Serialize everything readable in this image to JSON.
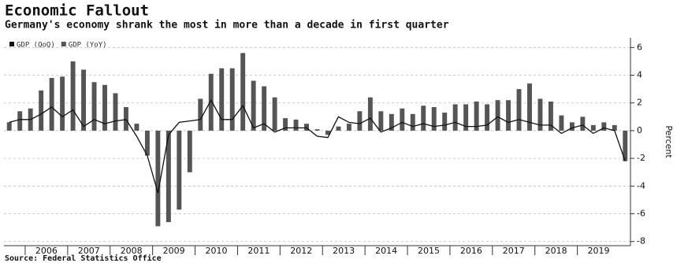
{
  "chart_data": {
    "type": "bar-line",
    "title": "Economic  Fallout",
    "subtitle": "Germany's economy shrank the most in more than a decade in first quarter",
    "source": "Source: Federal  Statistics Office",
    "y_label": "Percent",
    "legend": "top-left",
    "grid": true,
    "ylim": [
      -8.3,
      6.7
    ],
    "yticks": [
      -8,
      -6,
      -4,
      -2,
      0,
      2,
      4,
      6
    ],
    "categories": [
      null,
      null,
      "2006",
      null,
      null,
      null,
      "2007",
      null,
      null,
      null,
      "2008",
      null,
      null,
      null,
      "2009",
      null,
      null,
      null,
      "2010",
      null,
      null,
      null,
      "2011",
      null,
      null,
      null,
      "2012",
      null,
      null,
      null,
      "2013",
      null,
      null,
      null,
      "2014",
      null,
      null,
      null,
      "2015",
      null,
      null,
      null,
      "2016",
      null,
      null,
      null,
      "2017",
      null,
      null,
      null,
      "2018",
      null,
      null,
      null,
      "2019",
      null,
      null,
      null,
      null
    ],
    "series": [
      {
        "name": "GDP (QoQ)",
        "type": "line",
        "color": "#111111",
        "values": [
          0.6,
          0.8,
          0.8,
          1.2,
          1.7,
          1.0,
          1.5,
          0.3,
          0.8,
          0.5,
          0.7,
          0.8,
          -0.4,
          -1.8,
          -4.5,
          -0.3,
          0.6,
          0.7,
          0.8,
          2.2,
          0.8,
          0.8,
          1.8,
          0.2,
          0.5,
          -0.1,
          0.2,
          0.2,
          0.2,
          -0.4,
          -0.5,
          1.0,
          0.6,
          0.5,
          0.9,
          -0.1,
          0.2,
          0.6,
          0.3,
          0.5,
          0.3,
          0.4,
          0.6,
          0.3,
          0.3,
          0.4,
          1.0,
          0.6,
          0.8,
          0.6,
          0.4,
          0.4,
          -0.2,
          0.2,
          0.4,
          -0.2,
          0.2,
          0.0,
          -2.2
        ]
      },
      {
        "name": "GDP (YoY)",
        "type": "bar",
        "color": "#555555",
        "values": [
          0.6,
          1.4,
          1.6,
          2.9,
          3.8,
          3.9,
          5.0,
          4.4,
          3.5,
          3.3,
          2.7,
          1.7,
          0.5,
          -1.8,
          -6.9,
          -6.6,
          -5.7,
          -3.0,
          2.3,
          4.1,
          4.5,
          4.5,
          5.6,
          3.6,
          3.2,
          2.4,
          0.9,
          0.8,
          0.5,
          0.1,
          -0.3,
          0.3,
          0.5,
          1.4,
          2.4,
          1.4,
          1.2,
          1.6,
          1.2,
          1.8,
          1.7,
          1.3,
          1.9,
          1.9,
          2.1,
          1.9,
          2.2,
          2.2,
          3.0,
          3.4,
          2.3,
          2.1,
          1.1,
          0.6,
          1.0,
          0.4,
          0.6,
          0.4,
          -2.2
        ]
      }
    ]
  }
}
